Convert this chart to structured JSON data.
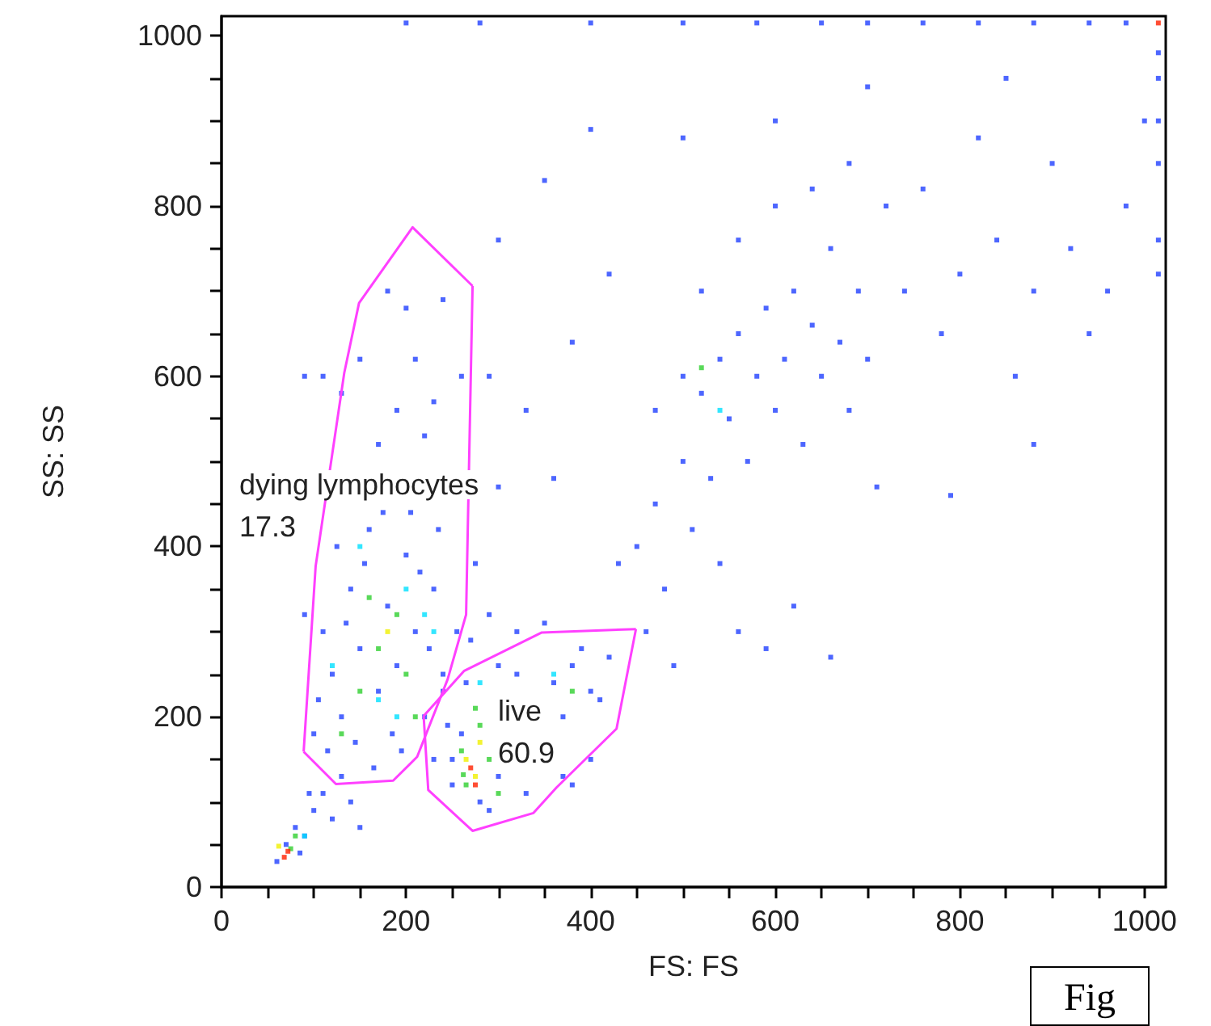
{
  "chart_data": {
    "type": "scatter",
    "xlabel": "FS: FS",
    "ylabel": "SS: SS",
    "xlim": [
      0,
      1023
    ],
    "ylim": [
      0,
      1023
    ],
    "xticks": [
      0,
      {
        "value": 50,
        "label": null
      },
      {
        "value": 100,
        "label": null
      },
      {
        "value": 150,
        "label": null
      },
      200,
      {
        "value": 250,
        "label": null
      },
      {
        "value": 300,
        "label": null
      },
      {
        "value": 350,
        "label": null
      },
      400,
      {
        "value": 450,
        "label": null
      },
      {
        "value": 500,
        "label": null
      },
      {
        "value": 550,
        "label": null
      },
      600,
      {
        "value": 650,
        "label": null
      },
      {
        "value": 700,
        "label": null
      },
      {
        "value": 750,
        "label": null
      },
      800,
      {
        "value": 850,
        "label": null
      },
      {
        "value": 900,
        "label": null
      },
      {
        "value": 950,
        "label": null
      },
      1000
    ],
    "yticks": [
      0,
      {
        "value": 50,
        "label": null
      },
      {
        "value": 100,
        "label": null
      },
      {
        "value": 150,
        "label": null
      },
      200,
      {
        "value": 250,
        "label": null
      },
      {
        "value": 300,
        "label": null
      },
      {
        "value": 350,
        "label": null
      },
      400,
      {
        "value": 450,
        "label": null
      },
      {
        "value": 500,
        "label": null
      },
      {
        "value": 550,
        "label": null
      },
      600,
      {
        "value": 650,
        "label": null
      },
      {
        "value": 700,
        "label": null
      },
      {
        "value": 750,
        "label": null
      },
      800,
      {
        "value": 850,
        "label": null
      },
      {
        "value": 900,
        "label": null
      },
      {
        "value": 950,
        "label": null
      },
      1000
    ],
    "grid": false,
    "marker": "square",
    "series": [
      {
        "color": "#2040ff",
        "x": [
          110,
          120,
          130,
          140,
          150,
          160,
          170,
          180,
          190,
          200,
          210,
          220,
          230,
          240,
          250,
          125,
          145,
          165,
          185,
          205,
          215,
          235,
          255,
          105,
          135,
          155,
          175,
          195,
          225,
          245,
          115,
          265,
          275,
          90,
          100,
          150,
          180,
          200,
          210,
          230,
          190,
          240,
          260,
          170,
          220,
          130,
          110,
          90,
          60,
          70,
          80,
          90,
          100,
          110,
          120,
          130,
          140,
          150,
          85,
          95,
          230,
          250,
          260,
          280,
          300,
          320,
          360,
          370,
          380,
          390,
          400,
          420,
          300,
          290,
          330,
          370,
          410,
          380,
          400,
          240,
          270,
          290,
          320,
          350,
          450,
          470,
          480,
          500,
          510,
          520,
          530,
          540,
          550,
          560,
          570,
          580,
          590,
          600,
          610,
          620,
          630,
          640,
          650,
          660,
          670,
          680,
          690,
          700,
          460,
          490,
          540,
          560,
          590,
          620,
          660,
          430,
          500,
          470,
          520,
          560,
          600,
          640,
          680,
          720,
          740,
          760,
          780,
          800,
          820,
          840,
          860,
          880,
          900,
          920,
          940,
          960,
          980,
          1000,
          850,
          700,
          600,
          500,
          400,
          350,
          300,
          420,
          380,
          330,
          290,
          360,
          300,
          710,
          790,
          880,
          200,
          280,
          400,
          500,
          580,
          650,
          700,
          760,
          820,
          880,
          940,
          980,
          1015,
          1015,
          1015,
          1015,
          1015,
          1015
        ],
        "values": [
          300,
          250,
          200,
          350,
          280,
          420,
          230,
          330,
          260,
          390,
          300,
          200,
          350,
          250,
          150,
          400,
          170,
          140,
          180,
          440,
          370,
          420,
          300,
          220,
          310,
          380,
          440,
          160,
          280,
          190,
          160,
          240,
          380,
          320,
          180,
          620,
          700,
          680,
          620,
          570,
          560,
          690,
          600,
          520,
          530,
          580,
          600,
          600,
          30,
          50,
          70,
          60,
          90,
          110,
          80,
          130,
          100,
          70,
          40,
          110,
          150,
          120,
          180,
          100,
          130,
          250,
          240,
          200,
          260,
          280,
          230,
          270,
          260,
          90,
          110,
          130,
          220,
          120,
          150,
          230,
          290,
          320,
          300,
          310,
          400,
          450,
          350,
          500,
          420,
          580,
          480,
          620,
          550,
          650,
          500,
          600,
          680,
          560,
          620,
          700,
          520,
          660,
          600,
          750,
          640,
          560,
          700,
          620,
          300,
          260,
          380,
          300,
          280,
          330,
          270,
          380,
          600,
          560,
          700,
          760,
          800,
          820,
          850,
          800,
          700,
          820,
          650,
          720,
          880,
          760,
          600,
          700,
          850,
          750,
          650,
          700,
          800,
          900,
          950,
          940,
          900,
          880,
          890,
          830,
          760,
          720,
          640,
          560,
          600,
          480,
          470,
          470,
          460,
          520,
          1015,
          1015,
          1015,
          1015,
          1015,
          1015,
          1015,
          1015,
          1015,
          1015,
          1015,
          1015,
          980,
          900,
          850,
          760,
          720,
          950
        ]
      },
      {
        "color": "#00e0ff",
        "x": [
          150,
          200,
          170,
          230,
          120,
          360,
          280,
          220,
          540,
          90,
          190
        ],
        "values": [
          400,
          350,
          220,
          300,
          260,
          250,
          240,
          320,
          560,
          60,
          200
        ]
      },
      {
        "color": "#30d030",
        "x": [
          150,
          170,
          190,
          200,
          160,
          210,
          260,
          262,
          280,
          275,
          265,
          290,
          300,
          380,
          80,
          75,
          520,
          130
        ],
        "values": [
          230,
          280,
          320,
          250,
          340,
          200,
          160,
          132,
          190,
          210,
          120,
          150,
          110,
          230,
          60,
          45,
          610,
          180
        ]
      },
      {
        "color": "#f0f000",
        "x": [
          265,
          275,
          280,
          62,
          180
        ],
        "values": [
          150,
          130,
          170,
          48,
          300
        ]
      },
      {
        "color": "#ff2000",
        "x": [
          270,
          275,
          68,
          72,
          1015
        ],
        "values": [
          140,
          120,
          35,
          42,
          1015
        ]
      },
      {
        "type": "line",
        "color": "#ff40ff",
        "marker": "none",
        "line_style": "solid",
        "x": [
          89,
          102,
          133,
          149,
          207,
          272
        ],
        "values": [
          159,
          377,
          604,
          686,
          775,
          706
        ]
      },
      {
        "type": "line",
        "color": "#ff40ff",
        "marker": "none",
        "line_style": "solid",
        "x": [
          89,
          124,
          186,
          212,
          245,
          265,
          272
        ],
        "values": [
          159,
          121,
          125,
          153,
          244,
          320,
          706
        ]
      },
      {
        "type": "line",
        "color": "#ff40ff",
        "marker": "none",
        "line_style": "solid",
        "x": [
          219,
          263,
          347,
          449
        ],
        "values": [
          201,
          254,
          299,
          303
        ]
      },
      {
        "type": "line",
        "color": "#ff40ff",
        "marker": "none",
        "line_style": "solid",
        "x": [
          219,
          224,
          272,
          338,
          363,
          428,
          449
        ],
        "values": [
          201,
          114,
          66,
          87,
          117,
          186,
          303
        ]
      }
    ],
    "annotations": [
      "dying lymphocytes",
      "17.3",
      "live",
      "60.9",
      "Fig"
    ]
  }
}
